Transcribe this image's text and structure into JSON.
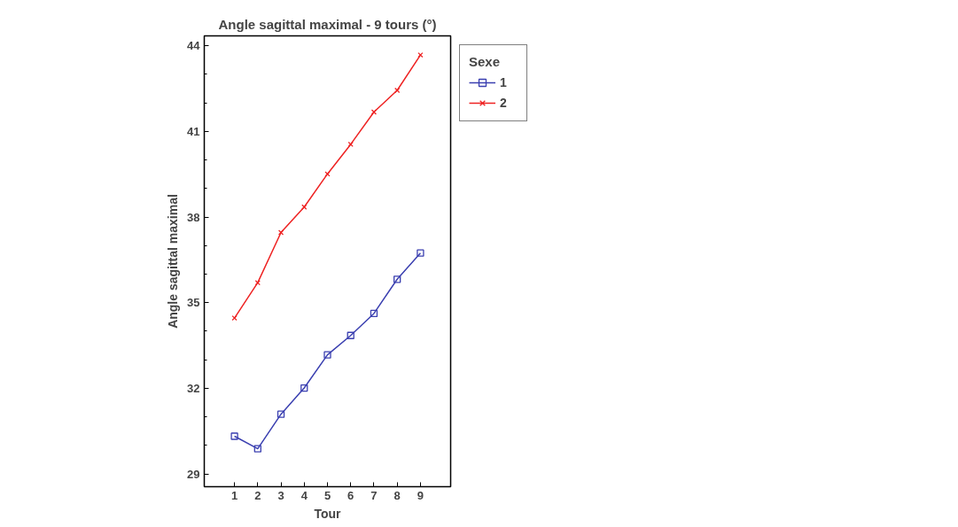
{
  "chart_data": {
    "type": "line",
    "title": "Angle sagittal maximal - 9 tours (°)",
    "xlabel": "Tour",
    "ylabel": "Angle sagittal maximal",
    "legend_title": "Sexe",
    "x": [
      1,
      2,
      3,
      4,
      5,
      6,
      7,
      8,
      9
    ],
    "series": [
      {
        "name": "1",
        "color": "#3a3fb0",
        "marker": "square",
        "values": [
          30.32,
          29.88,
          31.09,
          32.01,
          33.17,
          33.85,
          34.62,
          35.82,
          36.74
        ]
      },
      {
        "name": "2",
        "color": "#ee2222",
        "marker": "cross",
        "values": [
          34.46,
          35.7,
          37.46,
          38.35,
          39.51,
          40.55,
          41.68,
          42.44,
          43.68
        ]
      }
    ],
    "xlim": [
      -0.3,
      10.3
    ],
    "ylim": [
      28.55,
      44.35
    ],
    "xticks": [
      1,
      2,
      3,
      4,
      5,
      6,
      7,
      8,
      9
    ],
    "yticks": [
      29,
      32,
      35,
      38,
      41,
      44
    ],
    "grid": false,
    "legend": "top right",
    "line_style": "solid"
  }
}
